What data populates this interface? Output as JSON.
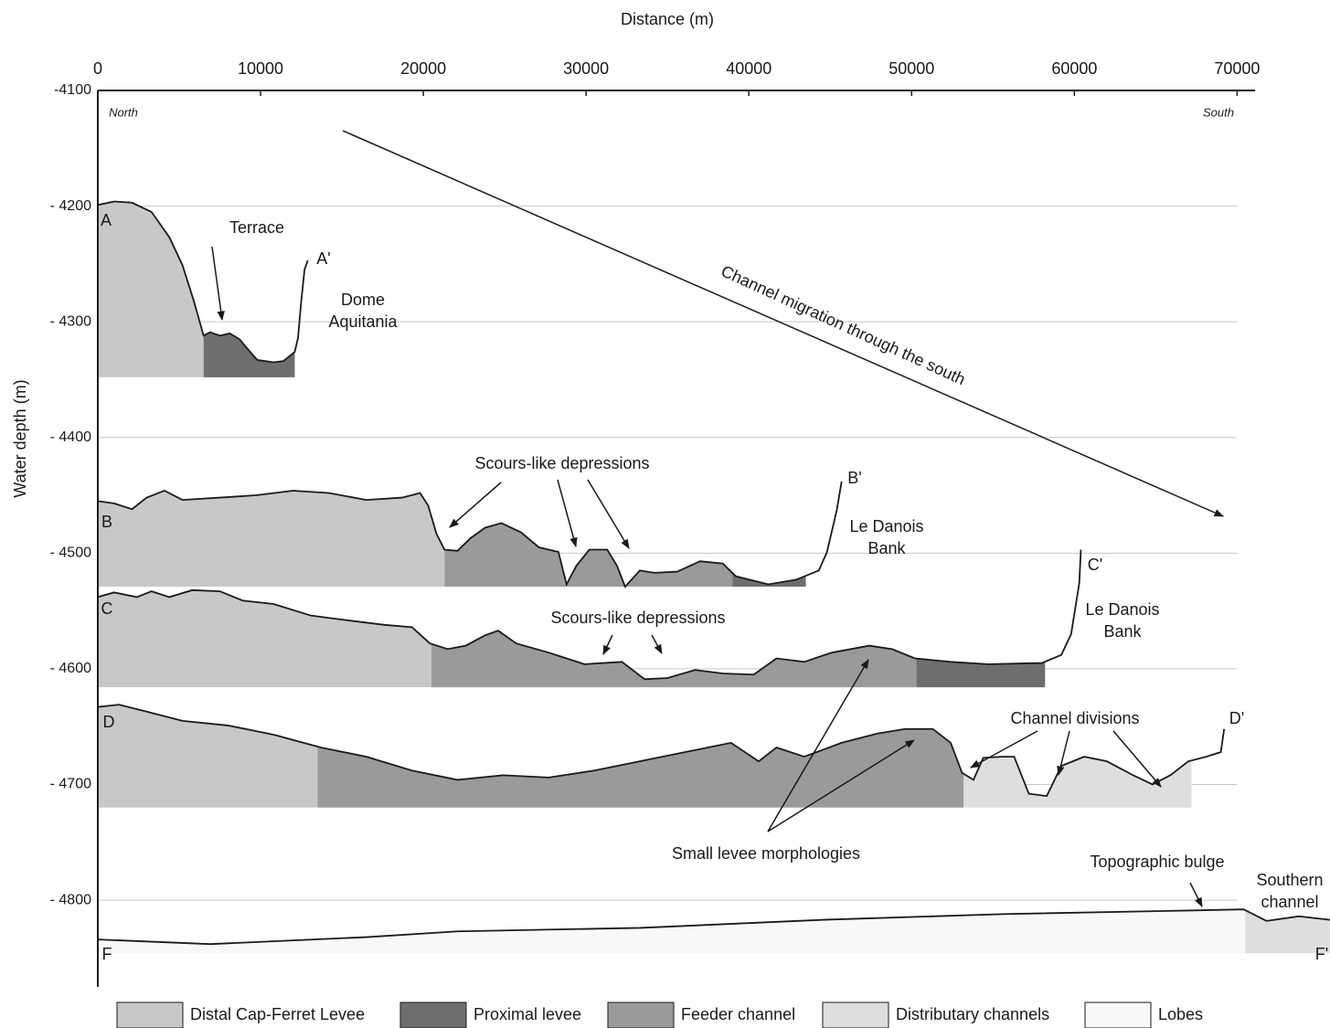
{
  "chart_data": {
    "type": "profile",
    "title": "Distance (m)",
    "y_label": "Water depth (m)",
    "xlim": [
      0,
      71100
    ],
    "ylim": [
      -4875,
      -4100
    ],
    "xticks": [
      0,
      10000,
      20000,
      30000,
      40000,
      50000,
      60000,
      70000
    ],
    "yticks": [
      -4100,
      {
        "value": -4200,
        "label": "- 4200"
      },
      {
        "value": -4300,
        "label": "- 4300"
      },
      {
        "value": -4400,
        "label": "- 4400"
      },
      {
        "value": -4500,
        "label": "- 4500"
      },
      {
        "value": -4600,
        "label": "- 4600"
      },
      {
        "value": -4700,
        "label": "- 4700"
      },
      {
        "value": -4800,
        "label": "- 4800"
      }
    ],
    "grid": true,
    "line_color": "#1a1a1a",
    "legend": [
      {
        "name": "Distal Cap-Ferret Levee",
        "color": "#c8c8c8"
      },
      {
        "name": "Proximal levee",
        "color": "#6e6e6e"
      },
      {
        "name": "Feeder channel",
        "color": "#9a9a9a"
      },
      {
        "name": "Distributary channels",
        "color": "#dedede"
      },
      {
        "name": "Lobes",
        "color": "#f8f8f8"
      }
    ],
    "series": [
      {
        "start_label": "A",
        "end_label": "A'",
        "base": -4348,
        "x": [
          0,
          1000,
          2100,
          3300,
          4400,
          5200,
          5900,
          6500,
          6900,
          7500,
          8100,
          8700,
          9300,
          9800,
          10800,
          11400,
          12100,
          12300,
          12500,
          12700,
          12900
        ],
        "values": [
          -4199,
          -4196,
          -4197,
          -4205,
          -4227,
          -4251,
          -4282,
          -4312,
          -4309,
          -4312,
          -4310,
          -4315,
          -4325,
          -4333,
          -4335,
          -4334,
          -4326,
          -4314,
          -4282,
          -4255,
          -4247
        ],
        "segments": [
          {
            "color": "#c8c8c8",
            "x": [
              0,
              6500
            ]
          },
          {
            "color": "#6e6e6e",
            "x": [
              6500,
              12100
            ]
          }
        ]
      },
      {
        "start_label": "B",
        "end_label": "B'",
        "base": -4529,
        "x": [
          0,
          1000,
          2100,
          3000,
          4100,
          5200,
          7500,
          9700,
          12000,
          14200,
          16500,
          18700,
          19800,
          20300,
          20800,
          21300,
          22100,
          22900,
          23800,
          24800,
          26000,
          27100,
          28300,
          28800,
          29400,
          30200,
          31300,
          31900,
          32400,
          33300,
          34200,
          35600,
          37000,
          38400,
          39200,
          41200,
          42900,
          44300,
          44800,
          45400,
          45700
        ],
        "values": [
          -4455,
          -4457,
          -4462,
          -4452,
          -4446,
          -4454,
          -4452,
          -4450,
          -4446,
          -4448,
          -4454,
          -4452,
          -4448,
          -4459,
          -4483,
          -4497,
          -4498,
          -4487,
          -4478,
          -4474,
          -4482,
          -4495,
          -4499,
          -4527,
          -4511,
          -4497,
          -4497,
          -4511,
          -4529,
          -4515,
          -4517,
          -4516,
          -4507,
          -4509,
          -4520,
          -4527,
          -4523,
          -4515,
          -4499,
          -4463,
          -4438
        ],
        "segments": [
          {
            "color": "#c8c8c8",
            "x": [
              0,
              21300
            ]
          },
          {
            "color": "#9a9a9a",
            "x": [
              21300,
              39000
            ]
          },
          {
            "color": "#6e6e6e",
            "x": [
              39000,
              43500
            ]
          }
        ]
      },
      {
        "start_label": "C",
        "end_label": "C'",
        "base": -4616,
        "x": [
          0,
          1000,
          2400,
          3300,
          4400,
          5800,
          7500,
          8900,
          10800,
          13100,
          15300,
          17600,
          19300,
          20400,
          21500,
          22600,
          23800,
          24600,
          25700,
          27700,
          29900,
          32200,
          33600,
          35000,
          36700,
          38400,
          40300,
          41700,
          43400,
          45100,
          47400,
          48800,
          50200,
          52400,
          54700,
          58000,
          59200,
          59800,
          60300,
          60400
        ],
        "values": [
          -4538,
          -4534,
          -4538,
          -4533,
          -4538,
          -4532,
          -4533,
          -4541,
          -4544,
          -4554,
          -4558,
          -4562,
          -4564,
          -4578,
          -4583,
          -4580,
          -4571,
          -4567,
          -4578,
          -4586,
          -4596,
          -4594,
          -4609,
          -4608,
          -4601,
          -4604,
          -4605,
          -4591,
          -4594,
          -4586,
          -4580,
          -4583,
          -4591,
          -4594,
          -4596,
          -4595,
          -4588,
          -4570,
          -4526,
          -4497
        ],
        "segments": [
          {
            "color": "#c8c8c8",
            "x": [
              0,
              20500
            ]
          },
          {
            "color": "#9a9a9a",
            "x": [
              20500,
              50300
            ]
          },
          {
            "color": "#6e6e6e",
            "x": [
              50300,
              58200
            ]
          }
        ]
      },
      {
        "start_label": "D",
        "end_label": "D'",
        "base": -4720,
        "x": [
          0,
          1300,
          3000,
          5200,
          8000,
          10800,
          13700,
          16500,
          19300,
          22100,
          24900,
          27700,
          30500,
          33300,
          36100,
          38900,
          40600,
          41700,
          43400,
          45700,
          47900,
          49600,
          51300,
          52400,
          53100,
          53800,
          54400,
          55500,
          56300,
          57200,
          58300,
          59200,
          60600,
          62000,
          63600,
          64800,
          65900,
          67000,
          68100,
          69000,
          69200
        ],
        "values": [
          -4633,
          -4631,
          -4637,
          -4645,
          -4649,
          -4657,
          -4668,
          -4676,
          -4688,
          -4696,
          -4692,
          -4694,
          -4688,
          -4680,
          -4672,
          -4664,
          -4680,
          -4668,
          -4676,
          -4664,
          -4656,
          -4652,
          -4652,
          -4664,
          -4690,
          -4696,
          -4677,
          -4676,
          -4676,
          -4708,
          -4710,
          -4684,
          -4676,
          -4680,
          -4692,
          -4700,
          -4692,
          -4680,
          -4676,
          -4672,
          -4652
        ],
        "segments": [
          {
            "color": "#c8c8c8",
            "x": [
              0,
              13500
            ]
          },
          {
            "color": "#9a9a9a",
            "x": [
              13500,
              53200
            ]
          },
          {
            "color": "#dedede",
            "x": [
              53200,
              67200
            ]
          }
        ]
      },
      {
        "start_label": "F",
        "end_label": "F'",
        "base": -4846,
        "x": [
          0,
          6900,
          16500,
          22100,
          33300,
          44600,
          55800,
          67000,
          70400,
          71800,
          73800,
          75700
        ],
        "values": [
          -4834,
          -4838,
          -4832,
          -4827,
          -4824,
          -4817,
          -4812,
          -4809,
          -4808,
          -4818,
          -4814,
          -4817
        ],
        "segments": [
          {
            "color": "#f8f8f8",
            "x": [
              0,
              70500
            ]
          },
          {
            "color": "#dedede",
            "x": [
              70500,
              75700
            ]
          }
        ]
      }
    ],
    "annotations": [
      "North",
      "South",
      "Terrace",
      "Dome",
      "Aquitania",
      "Channel migration through the south",
      "Scours-like depressions",
      "Le Danois",
      "Bank",
      "Le Danois",
      "Bank",
      "Scours-like depressions",
      "Channel divisions",
      "Small levee morphologies",
      "Topographic bulge",
      "Southern",
      "channel"
    ]
  }
}
